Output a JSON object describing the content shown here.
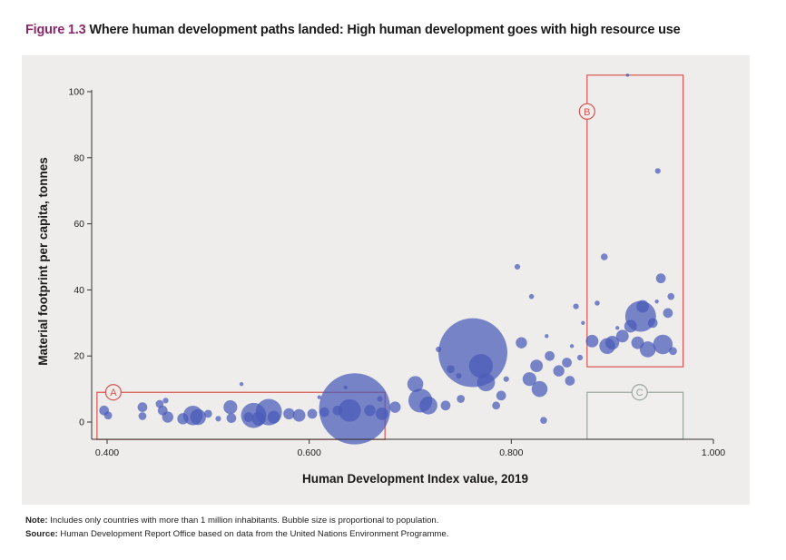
{
  "figure": {
    "label": "Figure 1.3",
    "title": "Where human development paths landed: High human development goes with high resource use"
  },
  "notes": {
    "note_label": "Note:",
    "note_text": "Includes only countries with more than 1 million inhabitants. Bubble size is proportional to population.",
    "source_label": "Source:",
    "source_text": "Human Development Report Office based on data from the United Nations Environment Programme."
  },
  "colors": {
    "title_accent": "#8b2a6b",
    "bubble": "#4a5ab8",
    "callout_ab": "#d9534f",
    "callout_c": "#9aa69a",
    "panel": "#eeedeb"
  },
  "chart_data": {
    "type": "scatter",
    "subtype": "bubble",
    "title": "Where human development paths landed: High human development goes with high resource use",
    "xlabel": "Human Development Index value, 2019",
    "ylabel": "Material footprint per capita, tonnes",
    "xlim": [
      0.4,
      1.0
    ],
    "ylim": [
      0,
      100
    ],
    "xticks": [
      0.4,
      0.6,
      0.8,
      1.0
    ],
    "xtick_labels": [
      "0.400",
      "0.600",
      "0.800",
      "1.000"
    ],
    "yticks": [
      0,
      20,
      40,
      60,
      80,
      100
    ],
    "ytick_labels": [
      "0",
      "20",
      "40",
      "60",
      "80",
      "100"
    ],
    "grid": false,
    "size_encoding": "population (relative)",
    "regions": [
      {
        "label": "A",
        "x_range": [
          0.39,
          0.675
        ],
        "y_range": [
          -5,
          9
        ],
        "color": "callout_ab"
      },
      {
        "label": "B",
        "x_range": [
          0.875,
          0.97
        ],
        "y_range": [
          17,
          105
        ],
        "color": "callout_ab"
      },
      {
        "label": "C",
        "x_range": [
          0.875,
          0.97
        ],
        "y_range": [
          -5,
          9
        ],
        "color": "callout_c"
      }
    ],
    "points": [
      {
        "x": 0.397,
        "y": 3.5,
        "s": 3
      },
      {
        "x": 0.401,
        "y": 2.0,
        "s": 2
      },
      {
        "x": 0.435,
        "y": 4.5,
        "s": 3
      },
      {
        "x": 0.435,
        "y": 1.8,
        "s": 2
      },
      {
        "x": 0.452,
        "y": 5.5,
        "s": 2
      },
      {
        "x": 0.455,
        "y": 3.5,
        "s": 3
      },
      {
        "x": 0.458,
        "y": 6.5,
        "s": 1
      },
      {
        "x": 0.46,
        "y": 1.5,
        "s": 4
      },
      {
        "x": 0.475,
        "y": 1.0,
        "s": 4
      },
      {
        "x": 0.485,
        "y": 2.0,
        "s": 12
      },
      {
        "x": 0.49,
        "y": 1.5,
        "s": 8
      },
      {
        "x": 0.5,
        "y": 2.5,
        "s": 2
      },
      {
        "x": 0.51,
        "y": 1.0,
        "s": 1
      },
      {
        "x": 0.522,
        "y": 4.5,
        "s": 6
      },
      {
        "x": 0.523,
        "y": 1.2,
        "s": 3
      },
      {
        "x": 0.533,
        "y": 11.5,
        "s": 0.5
      },
      {
        "x": 0.54,
        "y": 1.5,
        "s": 3
      },
      {
        "x": 0.545,
        "y": 2.0,
        "s": 20
      },
      {
        "x": 0.55,
        "y": 1.0,
        "s": 6
      },
      {
        "x": 0.56,
        "y": 3.0,
        "s": 22
      },
      {
        "x": 0.565,
        "y": 1.5,
        "s": 5
      },
      {
        "x": 0.58,
        "y": 2.5,
        "s": 4
      },
      {
        "x": 0.59,
        "y": 2.0,
        "s": 5
      },
      {
        "x": 0.603,
        "y": 2.5,
        "s": 3
      },
      {
        "x": 0.615,
        "y": 3.0,
        "s": 3
      },
      {
        "x": 0.628,
        "y": 3.5,
        "s": 3
      },
      {
        "x": 0.645,
        "y": 4.0,
        "s": 160
      },
      {
        "x": 0.64,
        "y": 3.5,
        "s": 16
      },
      {
        "x": 0.61,
        "y": 7.5,
        "s": 0.5
      },
      {
        "x": 0.636,
        "y": 10.5,
        "s": 0.5
      },
      {
        "x": 0.67,
        "y": 7.0,
        "s": 1
      },
      {
        "x": 0.66,
        "y": 3.5,
        "s": 4
      },
      {
        "x": 0.672,
        "y": 2.5,
        "s": 5
      },
      {
        "x": 0.685,
        "y": 4.5,
        "s": 4
      },
      {
        "x": 0.705,
        "y": 11.5,
        "s": 8
      },
      {
        "x": 0.71,
        "y": 6.5,
        "s": 18
      },
      {
        "x": 0.718,
        "y": 5.0,
        "s": 10
      },
      {
        "x": 0.735,
        "y": 5.0,
        "s": 3
      },
      {
        "x": 0.728,
        "y": 22.0,
        "s": 1
      },
      {
        "x": 0.75,
        "y": 7.0,
        "s": 2
      },
      {
        "x": 0.762,
        "y": 21.0,
        "s": 150
      },
      {
        "x": 0.77,
        "y": 17.0,
        "s": 18
      },
      {
        "x": 0.775,
        "y": 12.0,
        "s": 10
      },
      {
        "x": 0.74,
        "y": 16.0,
        "s": 2
      },
      {
        "x": 0.748,
        "y": 14.0,
        "s": 1
      },
      {
        "x": 0.79,
        "y": 8.0,
        "s": 3
      },
      {
        "x": 0.785,
        "y": 5.0,
        "s": 2
      },
      {
        "x": 0.795,
        "y": 13.0,
        "s": 1
      },
      {
        "x": 0.806,
        "y": 47.0,
        "s": 1
      },
      {
        "x": 0.81,
        "y": 24.0,
        "s": 4
      },
      {
        "x": 0.82,
        "y": 38.0,
        "s": 0.8
      },
      {
        "x": 0.818,
        "y": 13.0,
        "s": 6
      },
      {
        "x": 0.825,
        "y": 17.0,
        "s": 5
      },
      {
        "x": 0.828,
        "y": 10.0,
        "s": 8
      },
      {
        "x": 0.832,
        "y": 0.5,
        "s": 1.5
      },
      {
        "x": 0.838,
        "y": 20.0,
        "s": 3
      },
      {
        "x": 0.835,
        "y": 26.0,
        "s": 0.5
      },
      {
        "x": 0.847,
        "y": 15.5,
        "s": 4
      },
      {
        "x": 0.855,
        "y": 18.0,
        "s": 3
      },
      {
        "x": 0.858,
        "y": 12.5,
        "s": 3
      },
      {
        "x": 0.86,
        "y": 23.0,
        "s": 0.5
      },
      {
        "x": 0.864,
        "y": 35.0,
        "s": 1
      },
      {
        "x": 0.868,
        "y": 19.5,
        "s": 1
      },
      {
        "x": 0.871,
        "y": 30.0,
        "s": 0.5
      },
      {
        "x": 0.88,
        "y": 24.5,
        "s": 5
      },
      {
        "x": 0.885,
        "y": 36.0,
        "s": 0.8
      },
      {
        "x": 0.892,
        "y": 50.0,
        "s": 1.5
      },
      {
        "x": 0.895,
        "y": 23.0,
        "s": 8
      },
      {
        "x": 0.9,
        "y": 24.0,
        "s": 6
      },
      {
        "x": 0.905,
        "y": 28.5,
        "s": 0.5
      },
      {
        "x": 0.91,
        "y": 26.0,
        "s": 5
      },
      {
        "x": 0.918,
        "y": 29.0,
        "s": 5
      },
      {
        "x": 0.925,
        "y": 24.0,
        "s": 5
      },
      {
        "x": 0.928,
        "y": 32.0,
        "s": 30
      },
      {
        "x": 0.93,
        "y": 35.0,
        "s": 5
      },
      {
        "x": 0.935,
        "y": 22.0,
        "s": 8
      },
      {
        "x": 0.94,
        "y": 30.0,
        "s": 3
      },
      {
        "x": 0.945,
        "y": 76.0,
        "s": 1
      },
      {
        "x": 0.948,
        "y": 43.5,
        "s": 3
      },
      {
        "x": 0.95,
        "y": 23.5,
        "s": 12
      },
      {
        "x": 0.955,
        "y": 33.0,
        "s": 3
      },
      {
        "x": 0.958,
        "y": 38.0,
        "s": 1.5
      },
      {
        "x": 0.96,
        "y": 21.5,
        "s": 2
      },
      {
        "x": 0.944,
        "y": 36.5,
        "s": 0.5
      },
      {
        "x": 0.915,
        "y": 105,
        "s": 0.3
      }
    ]
  }
}
